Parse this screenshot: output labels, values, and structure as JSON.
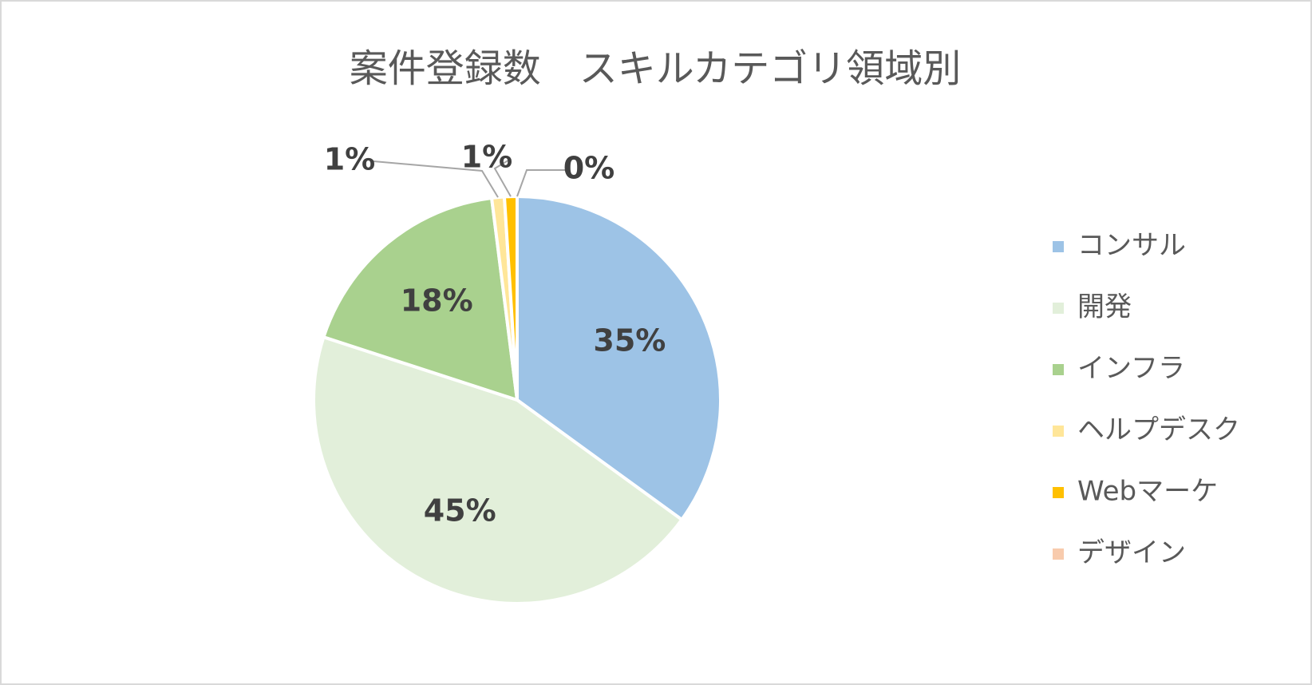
{
  "chart_data": {
    "type": "pie",
    "title": "案件登録数　スキルカテゴリ領域別",
    "categories": [
      "コンサル",
      "開発",
      "インフラ",
      "ヘルプデスク",
      "Webマーケ",
      "デザイン"
    ],
    "values": [
      35,
      45,
      18,
      1,
      1,
      0
    ],
    "value_labels": [
      "35%",
      "45%",
      "18%",
      "1%",
      "1%",
      "0%"
    ],
    "colors": [
      "#9DC3E6",
      "#E2EFDA",
      "#A9D18E",
      "#FFE699",
      "#FFC000",
      "#F8CBAD"
    ],
    "legend": "right"
  }
}
